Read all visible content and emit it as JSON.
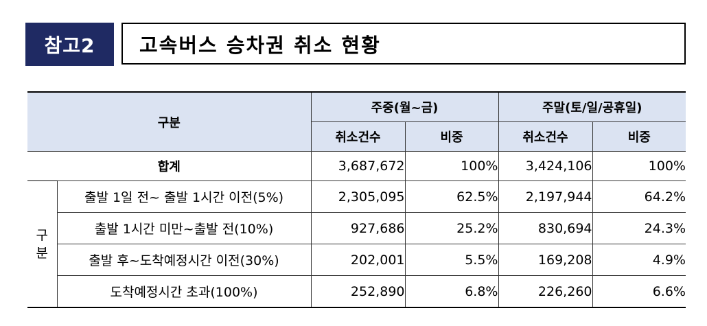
{
  "header": {
    "badge": "참고2",
    "title": "고속버스 승차권 취소 현황"
  },
  "table": {
    "category_label": "구분",
    "weekday_label": "주중(월~금)",
    "weekend_label": "주말(토/일/공휴일)",
    "count_label": "취소건수",
    "ratio_label": "비중",
    "side_label_1": "구",
    "side_label_2": "분",
    "total": {
      "label": "합계",
      "weekday_count": "3,687,672",
      "weekday_ratio": "100%",
      "weekend_count": "3,424,106",
      "weekend_ratio": "100%"
    },
    "rows": [
      {
        "label": "출발 1일 전~ 출발 1시간 이전(5%)",
        "weekday_count": "2,305,095",
        "weekday_ratio": "62.5%",
        "weekend_count": "2,197,944",
        "weekend_ratio": "64.2%"
      },
      {
        "label": "출발 1시간 미만~출발 전(10%)",
        "weekday_count": "927,686",
        "weekday_ratio": "25.2%",
        "weekend_count": "830,694",
        "weekend_ratio": "24.3%"
      },
      {
        "label": "출발 후~도착예정시간 이전(30%)",
        "weekday_count": "202,001",
        "weekday_ratio": "5.5%",
        "weekend_count": "169,208",
        "weekend_ratio": "4.9%"
      },
      {
        "label": "도착예정시간 초과(100%)",
        "weekday_count": "252,890",
        "weekday_ratio": "6.8%",
        "weekend_count": "226,260",
        "weekend_ratio": "6.6%"
      }
    ]
  }
}
